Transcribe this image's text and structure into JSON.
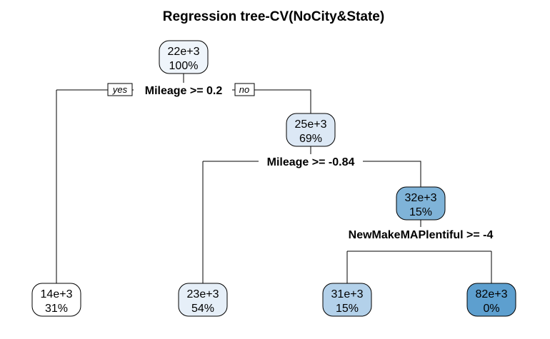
{
  "title": "Regression tree-CV(NoCity&State)",
  "branch_labels": {
    "yes": "yes",
    "no": "no"
  },
  "nodes": [
    {
      "id": "root",
      "value": "22e+3",
      "percent": "100%",
      "fill": "#eff5fb"
    },
    {
      "id": "n1",
      "value": "14e+3",
      "percent": "31%",
      "fill": "#ffffff"
    },
    {
      "id": "n2",
      "value": "25e+3",
      "percent": "69%",
      "fill": "#dce8f5"
    },
    {
      "id": "n3",
      "value": "23e+3",
      "percent": "54%",
      "fill": "#e6eff8"
    },
    {
      "id": "n4",
      "value": "32e+3",
      "percent": "15%",
      "fill": "#7fb3d8"
    },
    {
      "id": "n5",
      "value": "31e+3",
      "percent": "15%",
      "fill": "#b3d1ea"
    },
    {
      "id": "n6",
      "value": "82e+3",
      "percent": "0%",
      "fill": "#5d9fcf"
    }
  ],
  "splits": [
    {
      "id": "s-root",
      "label": "Mileage >= 0.2"
    },
    {
      "id": "s-n2",
      "label": "Mileage >= -0.84"
    },
    {
      "id": "s-n4",
      "label": "NewMakeMAPlentiful >= -4"
    }
  ]
}
